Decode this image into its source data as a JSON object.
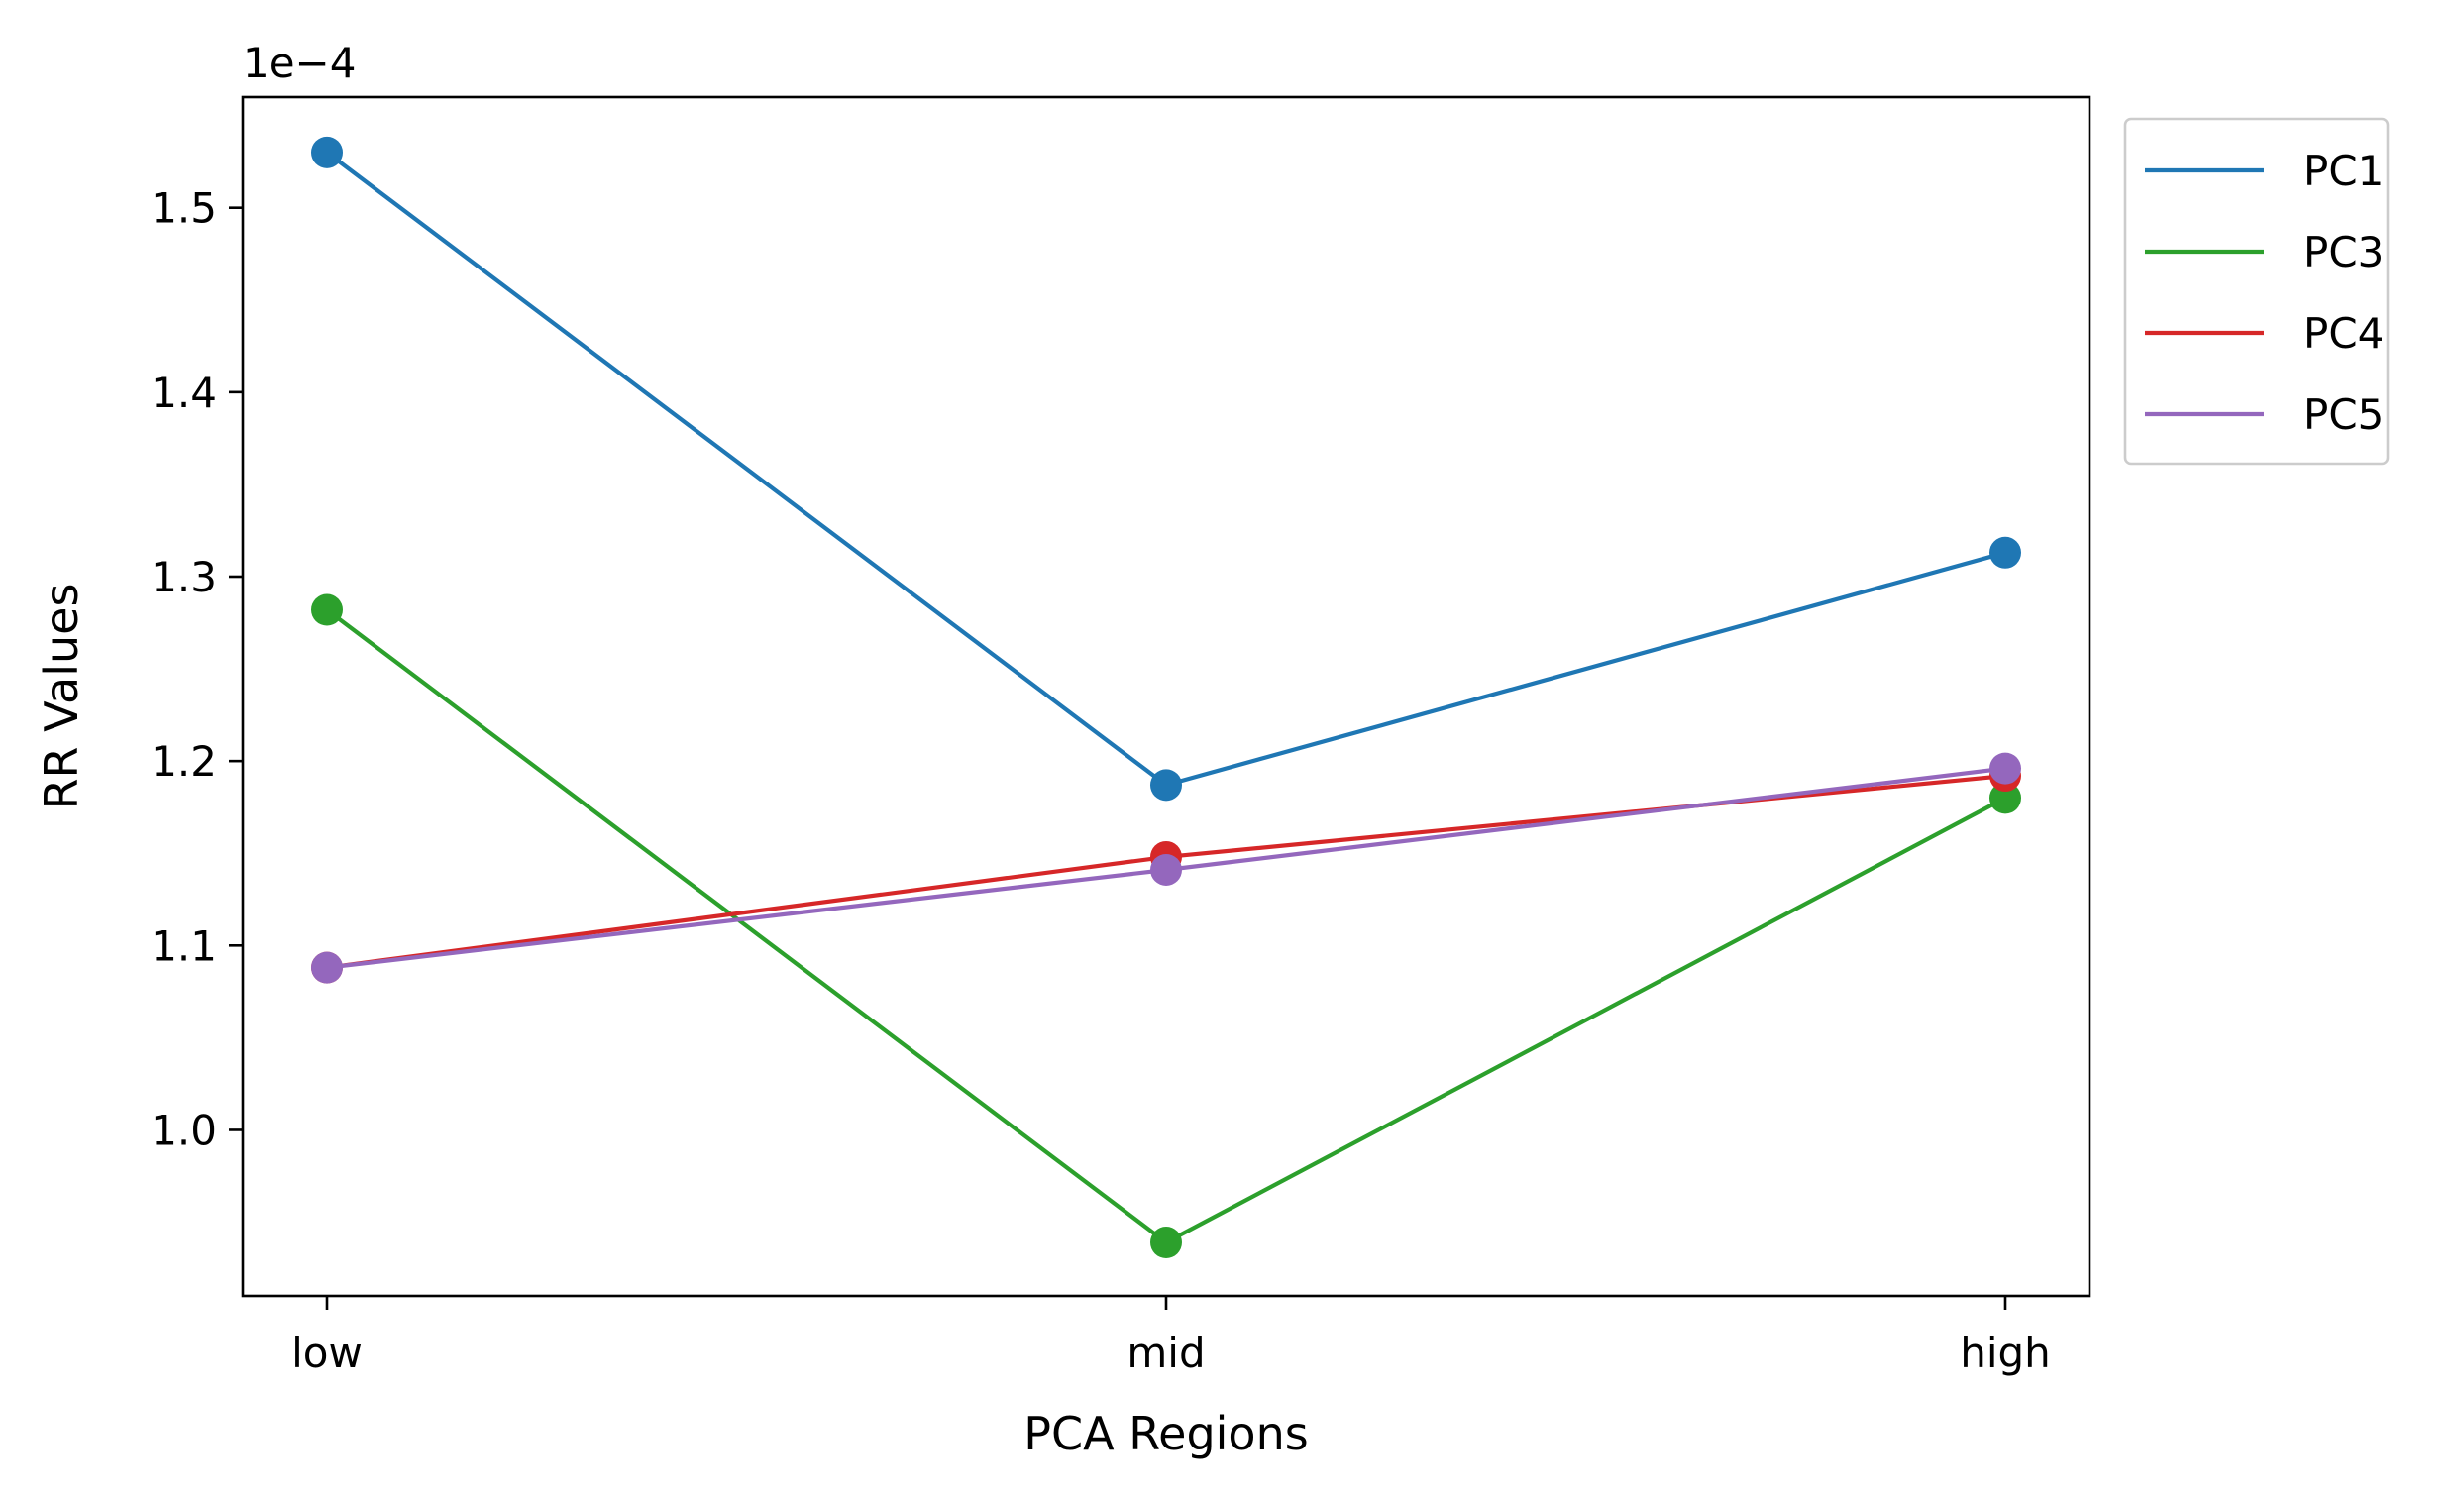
{
  "chart_data": {
    "type": "line",
    "title": "",
    "xlabel": "PCA Regions",
    "ylabel": "RR Values",
    "offset_label": "1e−4",
    "categories": [
      "low",
      "mid",
      "high"
    ],
    "ylim": [
      0.91,
      1.56
    ],
    "yticks": [
      1.0,
      1.1,
      1.2,
      1.3,
      1.4,
      1.5
    ],
    "ytick_labels": [
      "1.0",
      "1.1",
      "1.2",
      "1.3",
      "1.4",
      "1.5"
    ],
    "scale_factor": "1e-4",
    "grid": false,
    "legend_position": "outside-top-right",
    "markers": "circle",
    "series": [
      {
        "name": "PC1",
        "color": "#1f77b4",
        "values": [
          1.53,
          1.187,
          1.313
        ]
      },
      {
        "name": "PC3",
        "color": "#2ca02c",
        "values": [
          1.282,
          0.939,
          1.18
        ]
      },
      {
        "name": "PC4",
        "color": "#d62728",
        "values": [
          1.088,
          1.148,
          1.192
        ]
      },
      {
        "name": "PC5",
        "color": "#9467bd",
        "values": [
          1.088,
          1.141,
          1.196
        ]
      }
    ]
  }
}
